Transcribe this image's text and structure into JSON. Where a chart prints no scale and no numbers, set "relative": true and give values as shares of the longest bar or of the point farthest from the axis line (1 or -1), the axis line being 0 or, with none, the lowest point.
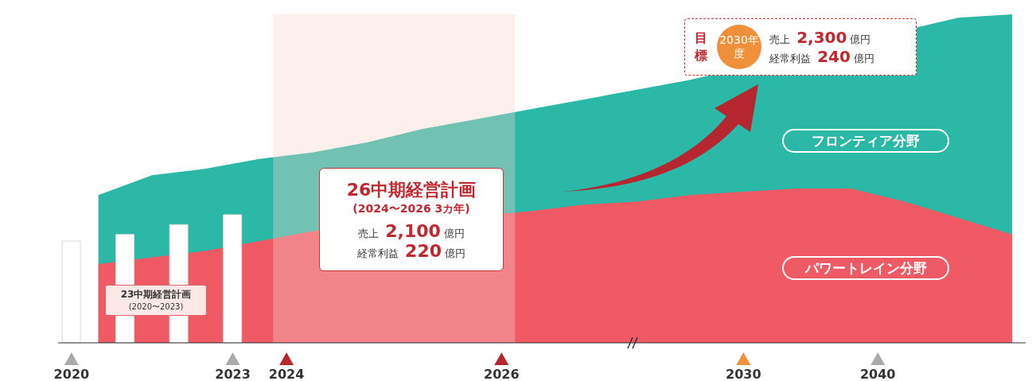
{
  "chart_data": {
    "type": "area",
    "relative": true,
    "legend": false,
    "categories": [
      "2020",
      null,
      null,
      null,
      null,
      null,
      "2023",
      null,
      "2024",
      null,
      null,
      null,
      null,
      null,
      null,
      null,
      "2026",
      null,
      null,
      null,
      null,
      null,
      null,
      null,
      null,
      "2030",
      null,
      null,
      null,
      null,
      "2040",
      null,
      null,
      null,
      null,
      null
    ],
    "series": [
      {
        "name": "フロンティア分野",
        "color": "#2bb8a6",
        "values": [
          null,
          0.45,
          null,
          0.51,
          null,
          0.53,
          null,
          0.56,
          null,
          0.58,
          null,
          0.61,
          null,
          0.65,
          null,
          0.68,
          null,
          0.71,
          null,
          0.74,
          null,
          0.77,
          null,
          0.8,
          null,
          null,
          null,
          null,
          null,
          null,
          null,
          null,
          null,
          0.99,
          null,
          1.0
        ]
      },
      {
        "name": "パワートレイン分野",
        "color": "#ef5a65",
        "values": [
          null,
          0.24,
          null,
          0.26,
          null,
          0.28,
          null,
          0.31,
          null,
          0.34,
          null,
          null,
          null,
          null,
          null,
          null,
          null,
          0.4,
          null,
          0.42,
          null,
          0.43,
          null,
          0.45,
          null,
          0.46,
          null,
          0.47,
          null,
          0.47,
          null,
          0.43,
          null,
          0.38,
          null,
          0.33
        ]
      },
      {
        "type": "bar",
        "color": "#ffffff",
        "values": [
          0.31,
          null,
          0.33,
          null,
          0.36,
          null,
          0.39,
          null,
          null,
          null,
          null,
          null,
          null,
          null,
          null,
          null,
          null,
          null,
          null,
          null,
          null,
          null,
          null,
          null,
          null,
          null,
          null,
          null,
          null,
          null,
          null,
          null,
          null,
          null,
          null,
          null
        ]
      }
    ],
    "bands": [
      {
        "axis": "x",
        "from": "2024",
        "to": "2026",
        "color": "#f6d3cc"
      }
    ],
    "annotations": [
      "23中期経営計画",
      "(2020〜2023)",
      "26中期経営計画",
      "(2024〜2026 3カ年)",
      "売上 2,100 億円",
      "経常利益 220 億円",
      "目標",
      "2030年度",
      "売上 2,300 億円",
      "経常利益 240 億円"
    ]
  }
}
